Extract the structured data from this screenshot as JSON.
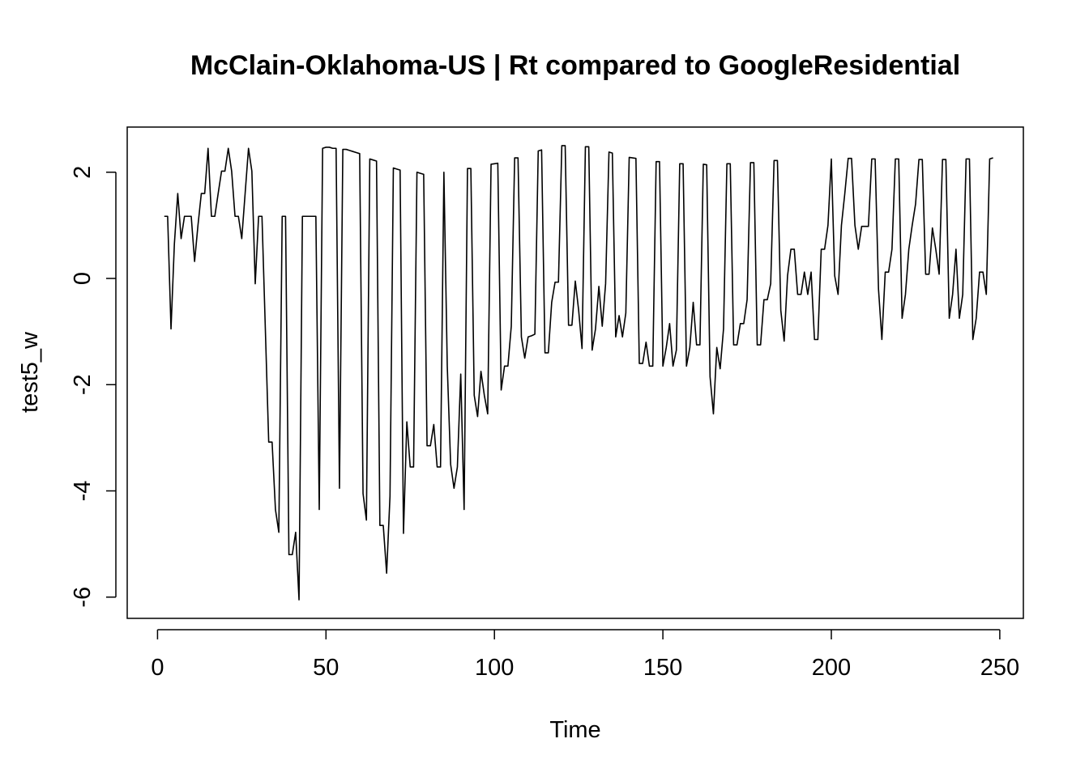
{
  "chart_data": {
    "type": "line",
    "title": "McClain-Oklahoma-US | Rt compared to GoogleResidential",
    "xlabel": "Time",
    "ylabel": "test5_w",
    "xlim": [
      -9,
      257
    ],
    "ylim": [
      -6.4,
      2.85
    ],
    "xticks": [
      0,
      50,
      100,
      150,
      200,
      250
    ],
    "yticks": [
      -6,
      -4,
      -2,
      0,
      2
    ],
    "grid": false,
    "legend": "none",
    "line_color": "#000000",
    "series": [
      {
        "x": [
          2,
          3,
          4,
          5,
          6,
          7,
          8,
          9,
          10,
          11,
          12,
          13,
          14,
          15,
          16,
          17,
          18,
          19,
          20,
          21,
          22,
          23,
          24,
          25,
          26,
          27,
          28,
          29,
          30,
          31,
          32,
          33,
          34,
          35,
          36,
          37,
          38,
          39,
          40,
          41,
          42,
          43,
          44,
          45,
          46,
          47,
          48,
          49,
          50,
          51,
          52,
          53,
          54,
          55,
          56,
          57,
          58,
          59,
          60,
          61,
          62,
          63,
          64,
          65,
          66,
          67,
          68,
          69,
          70,
          71,
          72,
          73,
          74,
          75,
          76,
          77,
          78,
          79,
          80,
          81,
          82,
          83,
          84,
          85,
          86,
          87,
          88,
          89,
          90,
          91,
          92,
          93,
          94,
          95,
          96,
          97,
          98,
          99,
          100,
          101,
          102,
          103,
          104,
          105,
          106,
          107,
          108,
          109,
          110,
          111,
          112,
          113,
          114,
          115,
          116,
          117,
          118,
          119,
          120,
          121,
          122,
          123,
          124,
          125,
          126,
          127,
          128,
          129,
          130,
          131,
          132,
          133,
          134,
          135,
          136,
          137,
          138,
          139,
          140,
          141,
          142,
          143,
          144,
          145,
          146,
          147,
          148,
          149,
          150,
          151,
          152,
          153,
          154,
          155,
          156,
          157,
          158,
          159,
          160,
          161,
          162,
          163,
          164,
          165,
          166,
          167,
          168,
          169,
          170,
          171,
          172,
          173,
          174,
          175,
          176,
          177,
          178,
          179,
          180,
          181,
          182,
          183,
          184,
          185,
          186,
          187,
          188,
          189,
          190,
          191,
          192,
          193,
          194,
          195,
          196,
          197,
          198,
          199,
          200,
          201,
          202,
          203,
          204,
          205,
          206,
          207,
          208,
          209,
          210,
          211,
          212,
          213,
          214,
          215,
          216,
          217,
          218,
          219,
          220,
          221,
          222,
          223,
          224,
          225,
          226,
          227,
          228,
          229,
          230,
          231,
          232,
          233,
          234,
          235,
          236,
          237,
          238,
          239,
          240,
          241,
          242,
          243,
          244,
          245,
          246,
          247,
          248
        ],
        "values": [
          1.17,
          1.17,
          -0.95,
          0.65,
          1.6,
          0.75,
          1.17,
          1.17,
          1.17,
          0.32,
          1.0,
          1.6,
          1.6,
          2.45,
          1.17,
          1.17,
          1.6,
          2.02,
          2.02,
          2.45,
          2.02,
          1.17,
          1.17,
          0.75,
          1.6,
          2.45,
          2.02,
          -0.1,
          1.17,
          1.17,
          -0.95,
          -3.08,
          -3.08,
          -4.35,
          -4.78,
          1.17,
          1.17,
          -5.2,
          -5.2,
          -4.78,
          -6.05,
          1.17,
          1.17,
          1.17,
          1.17,
          1.17,
          -4.35,
          2.45,
          2.47,
          2.47,
          2.45,
          2.45,
          -3.95,
          2.43,
          2.43,
          2.41,
          2.39,
          2.37,
          2.35,
          -4.05,
          -4.55,
          2.25,
          2.23,
          2.21,
          -4.65,
          -4.65,
          -5.55,
          -4.1,
          2.08,
          2.06,
          2.04,
          -4.8,
          -2.7,
          -3.55,
          -3.55,
          2.0,
          1.98,
          1.96,
          -3.15,
          -3.15,
          -2.75,
          -3.55,
          -3.55,
          2.0,
          -1.65,
          -3.5,
          -3.95,
          -3.55,
          -1.8,
          -4.35,
          2.07,
          2.07,
          -2.2,
          -2.6,
          -1.75,
          -2.2,
          -2.55,
          2.15,
          2.16,
          2.17,
          -2.1,
          -1.65,
          -1.65,
          -0.9,
          2.27,
          2.27,
          -1.1,
          -1.5,
          -1.1,
          -1.08,
          -1.05,
          2.4,
          2.42,
          -1.4,
          -1.4,
          -0.45,
          -0.07,
          -0.07,
          2.5,
          2.5,
          -0.88,
          -0.88,
          -0.05,
          -0.6,
          -1.32,
          2.48,
          2.48,
          -1.35,
          -0.95,
          -0.15,
          -0.9,
          -0.1,
          2.38,
          2.36,
          -1.1,
          -0.7,
          -1.1,
          -0.65,
          2.28,
          2.27,
          2.26,
          -1.6,
          -1.6,
          -1.2,
          -1.65,
          -1.65,
          2.2,
          2.2,
          -1.65,
          -1.3,
          -0.85,
          -1.65,
          -1.35,
          2.16,
          2.16,
          -1.65,
          -1.3,
          -0.45,
          -1.25,
          -1.25,
          2.15,
          2.14,
          -1.85,
          -2.55,
          -1.3,
          -1.7,
          -0.95,
          2.16,
          2.16,
          -1.25,
          -1.25,
          -0.85,
          -0.85,
          -0.4,
          2.18,
          2.18,
          -1.25,
          -1.25,
          -0.4,
          -0.4,
          -0.1,
          2.22,
          2.22,
          -0.6,
          -1.18,
          0.05,
          0.55,
          0.55,
          -0.3,
          -0.3,
          0.12,
          -0.3,
          0.12,
          -1.15,
          -1.15,
          0.55,
          0.55,
          1.0,
          2.25,
          0.05,
          -0.3,
          1.0,
          1.6,
          2.26,
          2.26,
          1.0,
          0.55,
          0.98,
          0.98,
          0.98,
          2.25,
          2.25,
          -0.2,
          -1.15,
          0.12,
          0.12,
          0.55,
          2.25,
          2.25,
          -0.75,
          -0.3,
          0.55,
          1.0,
          1.4,
          2.24,
          2.24,
          0.08,
          0.08,
          0.95,
          0.55,
          0.08,
          2.24,
          2.24,
          -0.75,
          -0.3,
          0.55,
          -0.75,
          -0.3,
          2.25,
          2.25,
          -1.15,
          -0.75,
          0.12,
          0.12,
          -0.3,
          2.25,
          2.27
        ]
      }
    ]
  }
}
